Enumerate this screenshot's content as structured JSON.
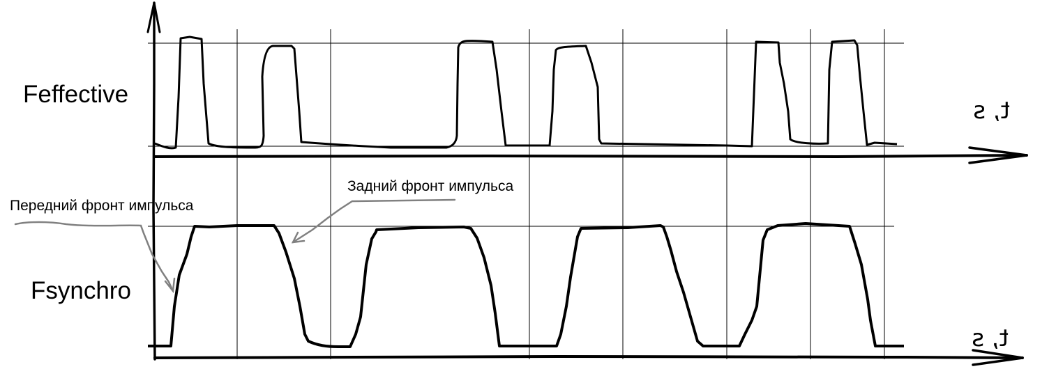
{
  "diagram": {
    "top_plot": {
      "label": "Feffective",
      "axis_label": "t, s",
      "axis_label_mirrored": true
    },
    "bottom_plot": {
      "label": "Fsynchro",
      "axis_label": "t, s",
      "axis_label_mirrored": true
    },
    "annotations": {
      "leading_edge": "Передний фронт импульса",
      "trailing_edge": "Задний фронт импульса"
    },
    "colors": {
      "waveform": "#000000",
      "grid": "#000000",
      "annotation": "#808080"
    }
  }
}
